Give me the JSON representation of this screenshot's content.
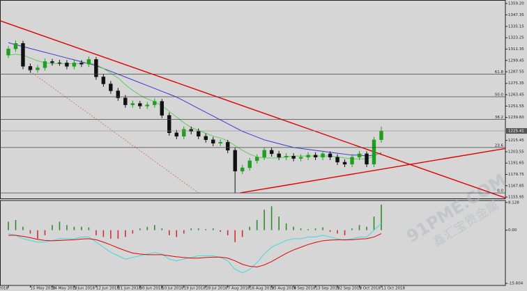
{
  "chart_data": [
    {
      "type": "candlestick",
      "categories": [
        "May 2018",
        null,
        null,
        "15 May 2018",
        null,
        null,
        "24 May 2018",
        null,
        null,
        "1 Jun 2018",
        null,
        null,
        "12 Jun 2018",
        null,
        null,
        "21 Jun 2018",
        null,
        null,
        "30 Jun 2018",
        null,
        null,
        "10 Jul 2018",
        null,
        null,
        "19 Jul 2018",
        null,
        null,
        "28 Jul 2018",
        null,
        null,
        "7 Aug 2018",
        null,
        null,
        "16 Aug 2018",
        null,
        null,
        "25 Aug 2018",
        null,
        null,
        "4 Sep 2018",
        null,
        null,
        "13 Sep 2018",
        null,
        null,
        "22 Sep 2018",
        null,
        null,
        "2 Oct 2018",
        null,
        null,
        "11 Oct 2018"
      ],
      "open": [
        1305.0,
        1311.5,
        1317.4,
        1293.2,
        1289.5,
        1291.7,
        1298.3,
        1297.0,
        1296.8,
        1293.2,
        1296.8,
        1295.5,
        1300.5,
        1282.2,
        1274.8,
        1267.5,
        1260.1,
        1252.8,
        1254.3,
        1251.5,
        1252.8,
        1256.5,
        1241.8,
        1223.4,
        1219.8,
        1227.1,
        1224.9,
        1219.8,
        1216.1,
        1212.4,
        1213.5,
        1205.1,
        1183.1,
        1186.7,
        1194.1,
        1197.8,
        1205.1,
        1201.4,
        1197.8,
        1199.0,
        1196.5,
        1197.8,
        1200.0,
        1197.8,
        1201.4,
        1197.8,
        1192.6,
        1190.4,
        1197.8,
        1201.4,
        1190.4,
        1216.1
      ],
      "high": [
        1314.5,
        1320.4,
        1320.0,
        1296.2,
        1294.7,
        1301.3,
        1301.0,
        1300.0,
        1299.8,
        1299.8,
        1299.8,
        1303.5,
        1303.0,
        1285.2,
        1277.8,
        1270.5,
        1263.1,
        1257.3,
        1257.0,
        1255.8,
        1259.5,
        1259.0,
        1244.8,
        1226.4,
        1230.1,
        1230.0,
        1227.9,
        1222.8,
        1219.1,
        1216.5,
        1216.0,
        1208.1,
        1189.7,
        1197.1,
        1200.8,
        1208.1,
        1208.0,
        1204.4,
        1202.0,
        1202.0,
        1200.8,
        1203.0,
        1203.0,
        1204.4,
        1204.0,
        1200.8,
        1195.6,
        1200.8,
        1204.4,
        1204.0,
        1219.1,
        1230.0
      ],
      "low": [
        1302.0,
        1308.5,
        1290.2,
        1286.5,
        1286.5,
        1288.7,
        1294.0,
        1293.8,
        1290.2,
        1290.2,
        1292.5,
        1292.5,
        1279.2,
        1271.8,
        1264.5,
        1257.1,
        1249.8,
        1249.8,
        1248.5,
        1248.5,
        1249.8,
        1238.8,
        1220.4,
        1216.8,
        1216.8,
        1221.9,
        1216.8,
        1213.1,
        1209.4,
        1209.4,
        1202.1,
        1160.3,
        1180.1,
        1183.7,
        1191.1,
        1194.8,
        1198.4,
        1194.8,
        1194.8,
        1193.5,
        1193.5,
        1194.8,
        1194.8,
        1194.8,
        1194.8,
        1189.6,
        1187.4,
        1187.4,
        1194.8,
        1187.4,
        1187.4,
        1213.1
      ],
      "close": [
        1311.5,
        1317.4,
        1293.2,
        1289.5,
        1291.7,
        1298.3,
        1297.0,
        1296.8,
        1293.2,
        1296.8,
        1295.5,
        1300.5,
        1282.2,
        1274.8,
        1267.5,
        1260.1,
        1252.8,
        1254.3,
        1251.5,
        1252.8,
        1256.5,
        1241.8,
        1223.4,
        1219.8,
        1227.1,
        1224.9,
        1219.8,
        1216.1,
        1212.4,
        1213.5,
        1205.1,
        1183.1,
        1186.7,
        1194.1,
        1197.8,
        1205.1,
        1201.4,
        1197.8,
        1199.0,
        1196.5,
        1197.8,
        1200.0,
        1197.8,
        1201.4,
        1197.8,
        1192.6,
        1190.4,
        1197.8,
        1201.4,
        1190.4,
        1216.1,
        1225.4
      ],
      "up_color": "#1f9e1f",
      "down_color": "#111111",
      "moving_averages": [
        {
          "color": "#3a3ad6",
          "values": [
            1318,
            1316,
            1314,
            1312,
            1310,
            1308,
            1306,
            1304,
            1302,
            1300,
            1298,
            1296,
            1294,
            1291,
            1288,
            1285,
            1282,
            1279,
            1276,
            1273,
            1270,
            1267,
            1264,
            1261,
            1257,
            1253,
            1249,
            1245,
            1241,
            1237,
            1233,
            1229,
            1225,
            1222,
            1219,
            1216,
            1214,
            1212,
            1210,
            1208,
            1207,
            1206,
            1205,
            1204,
            1203,
            1202,
            1201,
            1200,
            1200,
            1199,
            1200,
            1202
          ]
        },
        {
          "color": "#5ccf5c",
          "values": [
            1305,
            1306,
            1305,
            1302,
            1299,
            1297,
            1296,
            1296,
            1296,
            1296,
            1296,
            1297,
            1295,
            1291,
            1286,
            1281,
            1274,
            1268,
            1263,
            1259,
            1256,
            1252,
            1246,
            1240,
            1234,
            1229,
            1226,
            1223,
            1220,
            1218,
            1215,
            1210,
            1205,
            1201,
            1198,
            1197,
            1197,
            1197,
            1198,
            1199,
            1199,
            1199,
            1199,
            1199,
            1199,
            1198,
            1197,
            1196,
            1196,
            1196,
            1199,
            1203
          ]
        }
      ],
      "xlim": [
        -1.144,
        67.97
      ],
      "ylim": [
        1153.8,
        1362.9
      ],
      "yticks": [
        {
          "value": 1359.2,
          "label": "1359.20"
        },
        {
          "value": 1347.35,
          "label": "1347.35"
        },
        {
          "value": 1335.15,
          "label": "1335.15"
        },
        {
          "value": 1323.25,
          "label": "1323.25"
        },
        {
          "value": 1311.35,
          "label": "1311.35"
        },
        {
          "value": 1299.45,
          "label": "1299.45"
        },
        {
          "value": 1287.55,
          "label": "1287.55"
        },
        {
          "value": 1275.35,
          "label": "1275.35"
        },
        {
          "value": 1263.45,
          "label": "1263.45"
        },
        {
          "value": 1251.55,
          "label": "1251.55"
        },
        {
          "value": 1239.6,
          "label": "1239.60"
        },
        {
          "value": 1215.45,
          "label": "1215.45"
        },
        {
          "value": 1203.55,
          "label": "1203.55"
        },
        {
          "value": 1191.65,
          "label": "1191.65"
        },
        {
          "value": 1179.75,
          "label": "1179.75"
        },
        {
          "value": 1167.85,
          "label": "1167.85"
        },
        {
          "value": 1155.95,
          "label": "1155.95"
        }
      ],
      "fib_levels": [
        {
          "value": 1285.1,
          "label": "61.8"
        },
        {
          "value": 1261.3,
          "label": "50.0"
        },
        {
          "value": 1237.5,
          "label": "38.2"
        },
        {
          "value": 1208.0,
          "label": "23.6"
        },
        {
          "value": 1160.3,
          "label": "0.0"
        }
      ],
      "last_price": 1225.41,
      "trend_lines": [
        {
          "color": "#e00000",
          "dashed": false,
          "from": [
            -1.1,
            1341
          ],
          "to": [
            68,
            1155
          ]
        },
        {
          "color": "#e00000",
          "dashed": false,
          "from": [
            31.7,
            1160.3
          ],
          "to": [
            68,
            1207
          ]
        },
        {
          "color": "#e06060",
          "dashed": true,
          "from": [
            2.7,
            1289.5
          ],
          "to": [
            26,
            1160.3
          ]
        }
      ]
    },
    {
      "type": "macd",
      "histogram": [
        2.5,
        3,
        1,
        -1,
        -2.5,
        -1.5,
        1.5,
        2.5,
        1.5,
        1,
        1,
        0.8,
        -1.5,
        -2,
        -2.5,
        -2.5,
        -2,
        -1,
        0.5,
        1,
        1.5,
        0.5,
        -1.5,
        -2,
        -1,
        0.5,
        0.5,
        0.3,
        0.5,
        -0.5,
        -1.5,
        -3.5,
        -2,
        1,
        3,
        6,
        7,
        4,
        2,
        1,
        0.5,
        0.3,
        0.5,
        0.8,
        -0.5,
        -1,
        -1.5,
        0.5,
        1.5,
        1,
        4,
        7.5
      ],
      "up_color": "#2e8b2e",
      "down_color": "#d03030",
      "lines": [
        {
          "color": "#40d8e0",
          "values": [
            -1,
            -1.5,
            -2.5,
            -3,
            -3.5,
            -3.5,
            -3,
            -2.5,
            -2.5,
            -2.5,
            -2,
            -2,
            -3.5,
            -5,
            -6.5,
            -7.5,
            -8.5,
            -8,
            -7.5,
            -7,
            -6.5,
            -7,
            -8.5,
            -9,
            -8.5,
            -8,
            -7.5,
            -7.5,
            -7.5,
            -8,
            -9,
            -11.5,
            -12.5,
            -11.5,
            -9.5,
            -7,
            -5,
            -4,
            -3,
            -2.5,
            -2.5,
            -2,
            -2,
            -1.5,
            -2,
            -2.5,
            -3,
            -2.5,
            -2,
            -2,
            0,
            2
          ]
        },
        {
          "color": "#e00000",
          "values": [
            -1.5,
            -1.5,
            -1.8,
            -2.2,
            -2.7,
            -3,
            -3.1,
            -3,
            -2.9,
            -2.8,
            -2.6,
            -2.5,
            -2.8,
            -3.5,
            -4.3,
            -5.2,
            -6,
            -6.7,
            -7,
            -7.2,
            -7.2,
            -7.2,
            -7.5,
            -7.8,
            -8,
            -8.2,
            -8.2,
            -8,
            -7.9,
            -7.9,
            -8.2,
            -9,
            -10,
            -10.6,
            -10.8,
            -10.2,
            -9.2,
            -8,
            -6.8,
            -5.8,
            -5,
            -4.2,
            -3.6,
            -3.1,
            -2.9,
            -2.8,
            -2.8,
            -2.8,
            -2.6,
            -2.5,
            -2,
            -1
          ]
        }
      ],
      "ylim": [
        -16,
        8.5
      ],
      "yticks": [
        8.128,
        {
          "value": 0,
          "label": "0.00"
        },
        -15.604
      ]
    }
  ],
  "watermark": {
    "title": "91PME.COM",
    "subtitle": "鑫汇宝贵金属"
  }
}
